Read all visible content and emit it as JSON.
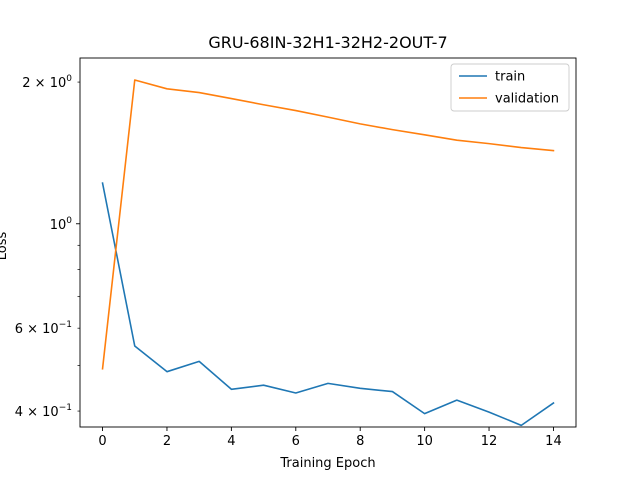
{
  "chart_data": {
    "type": "line",
    "title": "GRU-68IN-32H1-32H2-2OUT-7",
    "xlabel": "Training Epoch",
    "ylabel": "Loss",
    "yscale": "log",
    "xlim": [
      -0.7,
      14.7
    ],
    "ylim": [
      0.37,
      2.25
    ],
    "grid": false,
    "legend_position": "top-right",
    "x": [
      0,
      1,
      2,
      3,
      4,
      5,
      6,
      7,
      8,
      9,
      10,
      11,
      12,
      13,
      14
    ],
    "x_ticks": [
      0,
      2,
      4,
      6,
      8,
      10,
      12,
      14
    ],
    "x_tick_labels": [
      "0",
      "2",
      "4",
      "6",
      "8",
      "10",
      "12",
      "14"
    ],
    "y_major_ticks": [
      1.0
    ],
    "y_major_tick_labels": [
      "10^0"
    ],
    "y_minor_ticks": [
      0.4,
      0.5,
      0.6,
      0.7,
      0.8,
      0.9,
      2.0
    ],
    "y_minor_labeled": [
      {
        "value": 2.0,
        "mantissa": "2",
        "base": "10",
        "exp": "0"
      },
      {
        "value": 0.6,
        "mantissa": "6",
        "base": "10",
        "exp": "−1"
      },
      {
        "value": 0.4,
        "mantissa": "4",
        "base": "10",
        "exp": "−1"
      }
    ],
    "series": [
      {
        "name": "train",
        "color": "#1f77b4",
        "values": [
          1.22,
          0.55,
          0.485,
          0.51,
          0.445,
          0.454,
          0.437,
          0.458,
          0.447,
          0.44,
          0.395,
          0.422,
          0.398,
          0.373,
          0.416
        ]
      },
      {
        "name": "validation",
        "color": "#ff7f0e",
        "values": [
          0.492,
          2.02,
          1.935,
          1.9,
          1.845,
          1.79,
          1.74,
          1.685,
          1.63,
          1.585,
          1.545,
          1.505,
          1.48,
          1.452,
          1.43
        ]
      }
    ]
  }
}
